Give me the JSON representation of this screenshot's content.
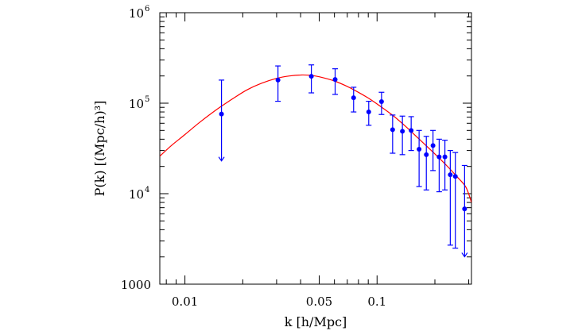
{
  "chart_data": {
    "type": "scatter",
    "title": "",
    "xlabel": "k [h/Mpc]",
    "ylabel": "P(k) [(Mpc/h)³]",
    "xscale": "log",
    "yscale": "log",
    "xlim": [
      0.0074,
      0.31
    ],
    "ylim": [
      1000,
      1000000
    ],
    "x_ticks": [
      {
        "value": 0.01,
        "label": "0.01"
      },
      {
        "value": 0.05,
        "label": "0.05"
      },
      {
        "value": 0.1,
        "label": "0.1"
      }
    ],
    "y_ticks": [
      {
        "value": 1000,
        "base": "1000",
        "exp": ""
      },
      {
        "value": 10000,
        "base": "10",
        "exp": "4"
      },
      {
        "value": 100000,
        "base": "10",
        "exp": "5"
      },
      {
        "value": 1000000,
        "base": "10",
        "exp": "6"
      }
    ],
    "grid": false,
    "series": [
      {
        "kind": "points_with_errorbars",
        "color": "#0000ff",
        "points": [
          {
            "x": 0.0155,
            "y": 76000,
            "yerr_low": 23500,
            "yerr_high": 180000,
            "lower_limit_arrow": true
          },
          {
            "x": 0.0305,
            "y": 180000,
            "yerr_low": 105000,
            "yerr_high": 258000
          },
          {
            "x": 0.0455,
            "y": 198000,
            "yerr_low": 130000,
            "yerr_high": 265000
          },
          {
            "x": 0.0605,
            "y": 183000,
            "yerr_low": 125000,
            "yerr_high": 240000
          },
          {
            "x": 0.0755,
            "y": 115000,
            "yerr_low": 80000,
            "yerr_high": 150000
          },
          {
            "x": 0.0905,
            "y": 80000,
            "yerr_low": 57000,
            "yerr_high": 105000
          },
          {
            "x": 0.1055,
            "y": 104000,
            "yerr_low": 75000,
            "yerr_high": 132000
          },
          {
            "x": 0.1205,
            "y": 51000,
            "yerr_low": 28000,
            "yerr_high": 74000
          },
          {
            "x": 0.1355,
            "y": 49000,
            "yerr_low": 27000,
            "yerr_high": 72000
          },
          {
            "x": 0.1505,
            "y": 50000,
            "yerr_low": 30000,
            "yerr_high": 71000
          },
          {
            "x": 0.1655,
            "y": 31000,
            "yerr_low": 12000,
            "yerr_high": 50000
          },
          {
            "x": 0.1805,
            "y": 27000,
            "yerr_low": 11000,
            "yerr_high": 43000
          },
          {
            "x": 0.1955,
            "y": 34000,
            "yerr_low": 18000,
            "yerr_high": 50000
          },
          {
            "x": 0.2105,
            "y": 25500,
            "yerr_low": 10500,
            "yerr_high": 40000
          },
          {
            "x": 0.2255,
            "y": 25500,
            "yerr_low": 11000,
            "yerr_high": 39000
          },
          {
            "x": 0.2405,
            "y": 16200,
            "yerr_low": 2700,
            "yerr_high": 30000
          },
          {
            "x": 0.2555,
            "y": 15500,
            "yerr_low": 2500,
            "yerr_high": 28500
          },
          {
            "x": 0.2855,
            "y": 6800,
            "yerr_low": 2050,
            "yerr_high": 20500,
            "lower_limit_arrow": true
          }
        ]
      },
      {
        "kind": "model_curve",
        "color": "#ff0000",
        "points": [
          {
            "x": 0.0074,
            "y": 26000
          },
          {
            "x": 0.0085,
            "y": 34000
          },
          {
            "x": 0.01,
            "y": 45000
          },
          {
            "x": 0.012,
            "y": 62000
          },
          {
            "x": 0.0145,
            "y": 84000
          },
          {
            "x": 0.0175,
            "y": 110000
          },
          {
            "x": 0.021,
            "y": 140000
          },
          {
            "x": 0.025,
            "y": 166000
          },
          {
            "x": 0.03,
            "y": 188000
          },
          {
            "x": 0.035,
            "y": 200000
          },
          {
            "x": 0.04,
            "y": 205000
          },
          {
            "x": 0.045,
            "y": 203000
          },
          {
            "x": 0.05,
            "y": 196000
          },
          {
            "x": 0.06,
            "y": 176000
          },
          {
            "x": 0.07,
            "y": 153000
          },
          {
            "x": 0.08,
            "y": 132000
          },
          {
            "x": 0.09,
            "y": 114000
          },
          {
            "x": 0.1,
            "y": 98000
          },
          {
            "x": 0.12,
            "y": 74000
          },
          {
            "x": 0.14,
            "y": 56000
          },
          {
            "x": 0.16,
            "y": 43000
          },
          {
            "x": 0.18,
            "y": 34000
          },
          {
            "x": 0.2,
            "y": 27500
          },
          {
            "x": 0.23,
            "y": 20500
          },
          {
            "x": 0.26,
            "y": 15500
          },
          {
            "x": 0.29,
            "y": 11800
          },
          {
            "x": 0.31,
            "y": 8000
          }
        ]
      }
    ]
  }
}
